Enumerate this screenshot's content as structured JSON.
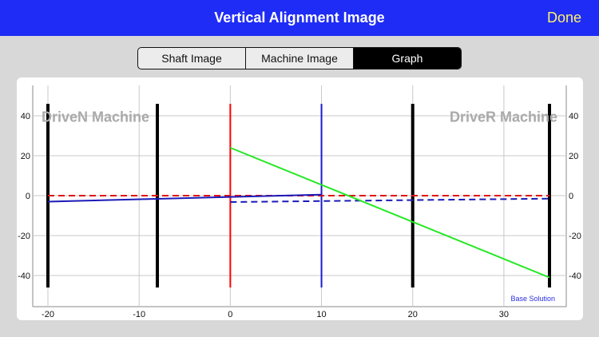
{
  "nav": {
    "title": "Vertical Alignment Image",
    "done_label": "Done"
  },
  "segments": [
    {
      "label": "Shaft Image",
      "active": false
    },
    {
      "label": "Machine Image",
      "active": false
    },
    {
      "label": "Graph",
      "active": true
    }
  ],
  "chart_data": {
    "type": "line",
    "xlim": [
      -20,
      35
    ],
    "ylim": [
      -50,
      50
    ],
    "x_ticks": [
      -20,
      -10,
      0,
      10,
      20,
      30
    ],
    "y_ticks": [
      40,
      20,
      0,
      -20,
      -40
    ],
    "grid": true,
    "left_label": "DriveN Machine",
    "right_label": "DriveR Machine",
    "footnote": "Base Solution",
    "vertical_markers": [
      {
        "x": -20,
        "color": "#000000",
        "y_range": [
          -46,
          46
        ]
      },
      {
        "x": -8,
        "color": "#000000",
        "y_range": [
          -46,
          46
        ]
      },
      {
        "x": 0,
        "color": "#ff0000",
        "y_range": [
          -46,
          46
        ]
      },
      {
        "x": 10,
        "color": "#1a1ad0",
        "y_range": [
          -46,
          46
        ]
      },
      {
        "x": 20,
        "color": "#000000",
        "y_range": [
          -46,
          46
        ]
      },
      {
        "x": 35,
        "color": "#000000",
        "y_range": [
          -46,
          46
        ]
      }
    ],
    "series": [
      {
        "color": "#e01010",
        "dashed": true,
        "x": [
          -20,
          35
        ],
        "y": [
          0,
          0
        ]
      },
      {
        "color": "#1a1ab8",
        "dashed": false,
        "x": [
          -20,
          10
        ],
        "y": [
          -3,
          0.5
        ]
      },
      {
        "color": "#1a1ab8",
        "dashed": true,
        "x": [
          0,
          35
        ],
        "y": [
          -3.2,
          -1.5
        ]
      },
      {
        "color": "#22e822",
        "dashed": false,
        "x": [
          0,
          35
        ],
        "y": [
          24,
          -41
        ]
      }
    ]
  }
}
